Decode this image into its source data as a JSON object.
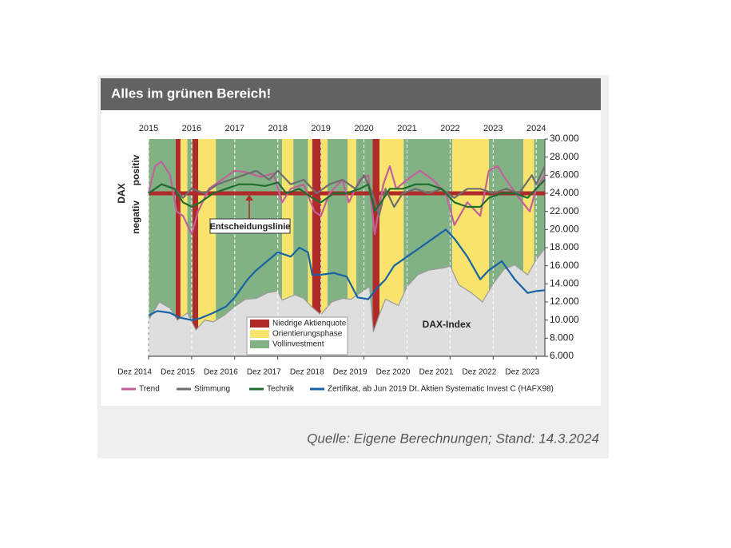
{
  "chart_data": {
    "type": "line",
    "title": "Alles im grünen Bereich!",
    "source": "Quelle: Eigene Berechnungen; Stand: 14.3.2024",
    "y_axis_label": "DAX",
    "positive_label": "positiv",
    "negative_label": "negativ",
    "grid": true,
    "xlim": [
      2015,
      2024.2
    ],
    "ylim": [
      6000,
      30000
    ],
    "xticks": [
      2015,
      2016,
      2017,
      2018,
      2019,
      2020,
      2021,
      2022,
      2023,
      2024
    ],
    "xticks_bottom": [
      {
        "value": 2015,
        "label": "Dez 2014"
      },
      {
        "value": 2016,
        "label": "Dez 2015"
      },
      {
        "value": 2017,
        "label": "Dez 2016"
      },
      {
        "value": 2018,
        "label": "Dez 2017"
      },
      {
        "value": 2019,
        "label": "Dez 2018"
      },
      {
        "value": 2020,
        "label": "Dez 2019"
      },
      {
        "value": 2021,
        "label": "Dez 2020"
      },
      {
        "value": 2022,
        "label": "Dez 2021"
      },
      {
        "value": 2023,
        "label": "Dez 2022"
      },
      {
        "value": 2024,
        "label": "Dez 2023"
      }
    ],
    "yticks": [
      {
        "value": 6000,
        "label": "6.000"
      },
      {
        "value": 8000,
        "label": "8.000"
      },
      {
        "value": 10000,
        "label": "10.000"
      },
      {
        "value": 12000,
        "label": "12.000"
      },
      {
        "value": 14000,
        "label": "14.000"
      },
      {
        "value": 16000,
        "label": "16.000"
      },
      {
        "value": 18000,
        "label": "18.000"
      },
      {
        "value": 20000,
        "label": "20.000"
      },
      {
        "value": 22000,
        "label": "22.000"
      },
      {
        "value": 24000,
        "label": "24.000"
      },
      {
        "value": 26000,
        "label": "26.000"
      },
      {
        "value": 28000,
        "label": "28.000"
      },
      {
        "value": 30000,
        "label": "30.000"
      }
    ],
    "decision_line": {
      "value": 24000,
      "label": "Entscheidungslinie",
      "color": "#b02a2a"
    },
    "regions": [
      {
        "name": "Vollinvestment",
        "color": "#82b283",
        "spans": [
          [
            2015,
            2015.63
          ],
          [
            2015.9,
            2016.02
          ],
          [
            2016.56,
            2018.1
          ],
          [
            2018.36,
            2018.7
          ],
          [
            2019.15,
            2019.62
          ],
          [
            2019.82,
            2020.2
          ],
          [
            2020.92,
            2022.05
          ],
          [
            2022.9,
            2023.7
          ],
          [
            2023.95,
            2024.2
          ]
        ]
      },
      {
        "name": "Orientierungsphase",
        "color": "#f8e46c",
        "spans": [
          [
            2015.74,
            2015.9
          ],
          [
            2016.15,
            2016.56
          ],
          [
            2018.1,
            2018.36
          ],
          [
            2018.7,
            2018.8
          ],
          [
            2019.0,
            2019.15
          ],
          [
            2019.62,
            2019.82
          ],
          [
            2020.36,
            2020.92
          ],
          [
            2022.05,
            2022.9
          ],
          [
            2023.7,
            2023.95
          ]
        ]
      },
      {
        "name": "Niedrige Aktienquote",
        "color": "#b02a2a",
        "spans": [
          [
            2015.63,
            2015.74
          ],
          [
            2016.02,
            2016.15
          ],
          [
            2018.8,
            2019.0
          ],
          [
            2020.2,
            2020.36
          ]
        ]
      }
    ],
    "area": {
      "name": "DAX-Index",
      "color": "#9a9a9a",
      "fill": "#dedede",
      "x": [
        2015.0,
        2015.25,
        2015.5,
        2015.67,
        2015.9,
        2016.1,
        2016.3,
        2016.5,
        2016.75,
        2017.0,
        2017.25,
        2017.5,
        2017.75,
        2018.0,
        2018.1,
        2018.4,
        2018.6,
        2018.8,
        2019.0,
        2019.25,
        2019.5,
        2019.7,
        2020.0,
        2020.13,
        2020.22,
        2020.35,
        2020.5,
        2020.8,
        2021.0,
        2021.25,
        2021.5,
        2021.9,
        2022.0,
        2022.2,
        2022.5,
        2022.75,
        2023.0,
        2023.25,
        2023.5,
        2023.8,
        2024.0,
        2024.2
      ],
      "values": [
        10000,
        12000,
        11300,
        10000,
        10800,
        8900,
        10000,
        9800,
        10500,
        11500,
        12300,
        12400,
        13000,
        13200,
        12200,
        12800,
        12400,
        11400,
        10600,
        12000,
        12400,
        12300,
        13300,
        13700,
        8700,
        10500,
        12300,
        11600,
        13700,
        15000,
        15500,
        15800,
        16000,
        13900,
        13000,
        12000,
        14000,
        15600,
        16100,
        15000,
        16700,
        17900
      ]
    },
    "series": [
      {
        "name": "Trend",
        "color": "#c2609c",
        "x": [
          2015.0,
          2015.15,
          2015.3,
          2015.5,
          2015.65,
          2015.8,
          2016.0,
          2016.15,
          2016.4,
          2016.7,
          2017.0,
          2017.3,
          2017.6,
          2017.9,
          2018.1,
          2018.3,
          2018.6,
          2018.85,
          2019.0,
          2019.2,
          2019.5,
          2019.65,
          2019.9,
          2020.1,
          2020.25,
          2020.45,
          2020.6,
          2020.75,
          2021.0,
          2021.3,
          2021.6,
          2021.9,
          2022.1,
          2022.4,
          2022.7,
          2022.9,
          2023.1,
          2023.3,
          2023.6,
          2023.85,
          2024.0,
          2024.2
        ],
        "values": [
          24000,
          27000,
          27500,
          26000,
          22000,
          21500,
          19500,
          22000,
          24500,
          25500,
          26500,
          26300,
          25800,
          26200,
          23000,
          24500,
          25000,
          22000,
          21500,
          24000,
          25500,
          23000,
          25500,
          26000,
          19500,
          25000,
          27000,
          24500,
          25500,
          26500,
          25500,
          24000,
          20500,
          23000,
          21500,
          26500,
          27000,
          25500,
          23500,
          22000,
          24500,
          26000
        ]
      },
      {
        "name": "Stimmung",
        "color": "#6e6e6e",
        "x": [
          2015.0,
          2015.3,
          2015.6,
          2015.8,
          2016.0,
          2016.3,
          2016.6,
          2016.9,
          2017.2,
          2017.5,
          2017.8,
          2018.0,
          2018.3,
          2018.6,
          2018.9,
          2019.2,
          2019.5,
          2019.8,
          2020.0,
          2020.2,
          2020.35,
          2020.5,
          2020.7,
          2020.9,
          2021.2,
          2021.5,
          2021.8,
          2022.1,
          2022.4,
          2022.7,
          2023.0,
          2023.3,
          2023.6,
          2023.9,
          2024.0,
          2024.2
        ],
        "values": [
          24000,
          25000,
          24500,
          23500,
          24500,
          24000,
          25000,
          25500,
          26000,
          26500,
          25500,
          26500,
          25000,
          25500,
          24000,
          25000,
          25500,
          24500,
          26000,
          24000,
          21500,
          24500,
          22500,
          24000,
          24500,
          24000,
          24500,
          23500,
          24500,
          24500,
          24000,
          24500,
          24000,
          26000,
          25000,
          27000
        ]
      },
      {
        "name": "Technik",
        "color": "#1f6e2f",
        "x": [
          2015.0,
          2015.3,
          2015.6,
          2015.8,
          2016.0,
          2016.2,
          2016.5,
          2016.8,
          2017.1,
          2017.4,
          2017.7,
          2018.0,
          2018.2,
          2018.5,
          2018.8,
          2019.0,
          2019.3,
          2019.6,
          2019.9,
          2020.1,
          2020.25,
          2020.4,
          2020.6,
          2020.9,
          2021.2,
          2021.5,
          2021.8,
          2022.1,
          2022.4,
          2022.7,
          2022.9,
          2023.2,
          2023.5,
          2023.8,
          2024.0,
          2024.2
        ],
        "values": [
          24000,
          25000,
          24500,
          23000,
          22500,
          23000,
          24000,
          24500,
          25000,
          25000,
          24800,
          25200,
          24000,
          24500,
          23500,
          23000,
          24000,
          24000,
          24500,
          25000,
          22000,
          23000,
          24500,
          24500,
          25000,
          25000,
          24500,
          23000,
          22500,
          22500,
          23500,
          24000,
          24000,
          23500,
          24500,
          25500
        ]
      },
      {
        "name": "Zertifikat, ab Jun 2019 Dt. Aktien Systematic Invest C (HAFX98)",
        "color": "#1763a6",
        "x": [
          2015.0,
          2015.2,
          2015.5,
          2015.7,
          2016.0,
          2016.2,
          2016.5,
          2016.8,
          2017.0,
          2017.3,
          2017.5,
          2017.75,
          2018.0,
          2018.3,
          2018.5,
          2018.7,
          2018.8,
          2019.0,
          2019.3,
          2019.6,
          2019.85,
          2020.1,
          2020.3,
          2020.5,
          2020.7,
          2021.0,
          2021.3,
          2021.6,
          2021.9,
          2022.1,
          2022.4,
          2022.7,
          2022.9,
          2023.2,
          2023.5,
          2023.8,
          2024.0,
          2024.2
        ],
        "values": [
          10500,
          11000,
          10800,
          10300,
          10000,
          10200,
          10800,
          11500,
          12500,
          14500,
          15500,
          16500,
          17500,
          17000,
          18000,
          17500,
          15000,
          15000,
          15200,
          14800,
          12500,
          12300,
          13500,
          14500,
          16000,
          17000,
          18000,
          19000,
          20000,
          19000,
          17000,
          14500,
          15500,
          16500,
          14500,
          13000,
          13200,
          13300
        ]
      }
    ]
  }
}
